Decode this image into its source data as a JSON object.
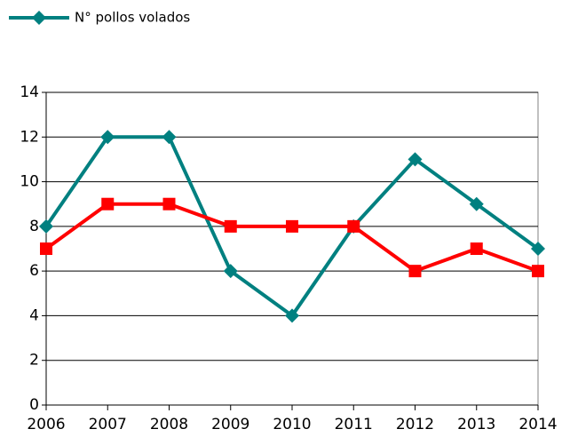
{
  "chart_data": {
    "type": "line",
    "categories": [
      "2006",
      "2007",
      "2008",
      "2009",
      "2010",
      "2011",
      "2012",
      "2013",
      "2014"
    ],
    "series": [
      {
        "name": "N° pollos volados",
        "color": "#008080",
        "marker": "diamond",
        "values": [
          8,
          12,
          12,
          6,
          4,
          8,
          11,
          9,
          7
        ]
      },
      {
        "color": "#ff0000",
        "marker": "square",
        "values": [
          7,
          9,
          9,
          8,
          8,
          8,
          6,
          7,
          6
        ]
      }
    ],
    "ylim": [
      0,
      14
    ],
    "yticks": [
      0,
      2,
      4,
      6,
      8,
      10,
      12,
      14
    ],
    "grid": true,
    "legend": "top-left"
  }
}
